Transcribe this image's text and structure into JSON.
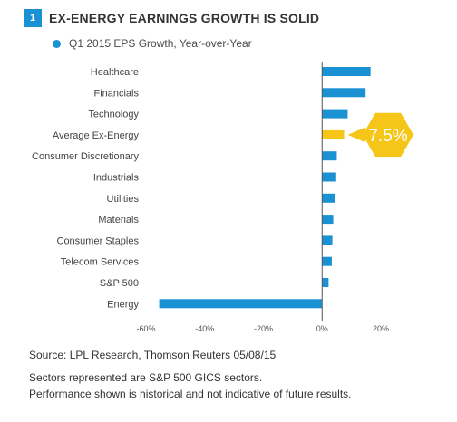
{
  "header": {
    "badge": "1",
    "title": "EX-ENERGY EARNINGS GROWTH IS SOLID"
  },
  "legend": {
    "label": "Q1 2015 EPS Growth, Year-over-Year"
  },
  "colors": {
    "accent_blue": "#1a91d2",
    "highlight_yellow": "#f5c518"
  },
  "chart_data": {
    "type": "bar",
    "orientation": "horizontal",
    "categories": [
      "Healthcare",
      "Financials",
      "Technology",
      "Average Ex-Energy",
      "Consumer Discretionary",
      "Industrials",
      "Utilities",
      "Materials",
      "Consumer Staples",
      "Telecom Services",
      "S&P 500",
      "Energy"
    ],
    "series": [
      {
        "name": "Q1 2015 EPS Growth, Year-over-Year",
        "values": [
          16.5,
          14.8,
          8.7,
          7.5,
          5.0,
          4.8,
          4.3,
          3.8,
          3.5,
          3.3,
          2.2,
          -55.5
        ]
      }
    ],
    "highlight_category": "Average Ex-Energy",
    "callout": "7.5%",
    "xlim": [
      -60,
      20
    ],
    "xticks": [
      "-60%",
      "-40%",
      "-20%",
      "0%",
      "20%"
    ],
    "grid": false
  },
  "footer": {
    "source": "Source: LPL Research, Thomson Reuters 05/08/15",
    "note1": "Sectors represented are S&P 500 GICS sectors.",
    "note2": "Performance shown is historical and not indicative of future results."
  }
}
